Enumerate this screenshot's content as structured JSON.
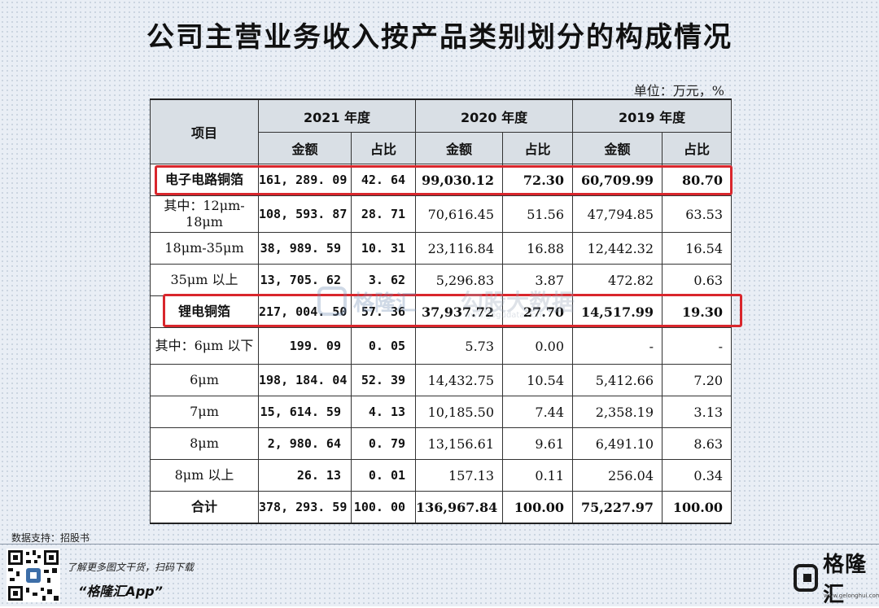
{
  "title": "公司主营业务收入按产品类别划分的构成情况",
  "unit": "单位：万元，%",
  "table": {
    "header_item": "项目",
    "years": [
      "2021 年度",
      "2020 年度",
      "2019 年度"
    ],
    "sub_headers": [
      "金额",
      "占比",
      "金额",
      "占比",
      "金额",
      "占比"
    ],
    "rows": [
      {
        "label": "电子电路铜箔",
        "values": [
          "161, 289. 09",
          "42. 64",
          "99,030.12",
          "72.30",
          "60,709.99",
          "80.70"
        ]
      },
      {
        "label": "其中：12μm-18μm",
        "values": [
          "108, 593. 87",
          "28. 71",
          "70,616.45",
          "51.56",
          "47,794.85",
          "63.53"
        ]
      },
      {
        "label": "18μm-35μm",
        "values": [
          "38, 989. 59",
          "10. 31",
          "23,116.84",
          "16.88",
          "12,442.32",
          "16.54"
        ]
      },
      {
        "label": "35μm 以上",
        "values": [
          "13, 705. 62",
          "3. 62",
          "5,296.83",
          "3.87",
          "472.82",
          "0.63"
        ]
      },
      {
        "label": "锂电铜箔",
        "values": [
          "217, 004. 50",
          "57. 36",
          "37,937.72",
          "27.70",
          "14,517.99",
          "19.30"
        ]
      },
      {
        "label": "其中：6μm 以下",
        "values": [
          "199. 09",
          "0. 05",
          "5.73",
          "0.00",
          "-",
          "-"
        ]
      },
      {
        "label": "6μm",
        "values": [
          "198, 184. 04",
          "52. 39",
          "14,432.75",
          "10.54",
          "5,412.66",
          "7.20"
        ]
      },
      {
        "label": "7μm",
        "values": [
          "15, 614. 59",
          "4. 13",
          "10,185.50",
          "7.44",
          "2,358.19",
          "3.13"
        ]
      },
      {
        "label": "8μm",
        "values": [
          "2, 980. 64",
          "0. 79",
          "13,156.61",
          "9.61",
          "6,491.10",
          "8.63"
        ]
      },
      {
        "label": "8μm 以上",
        "values": [
          "26. 13",
          "0. 01",
          "157.13",
          "0.11",
          "256.04",
          "0.34"
        ]
      },
      {
        "label": "合计",
        "values": [
          "378, 293. 59",
          "100. 00",
          "136,967.84",
          "100.00",
          "75,227.97",
          "100.00"
        ]
      }
    ]
  },
  "watermark": {
    "name": "格隆汇",
    "text": "勾股大数据",
    "url": "www.gogudata.com"
  },
  "source": "数据支持：招股书",
  "footer": {
    "line1": "了解更多图文干货，扫码下载",
    "line2": "“格隆汇App”",
    "brand": "格隆汇",
    "brand_url": "www.gelonghui.com"
  },
  "colors": {
    "highlight": "#d9262c",
    "header_bg": "#d9dfe5"
  }
}
